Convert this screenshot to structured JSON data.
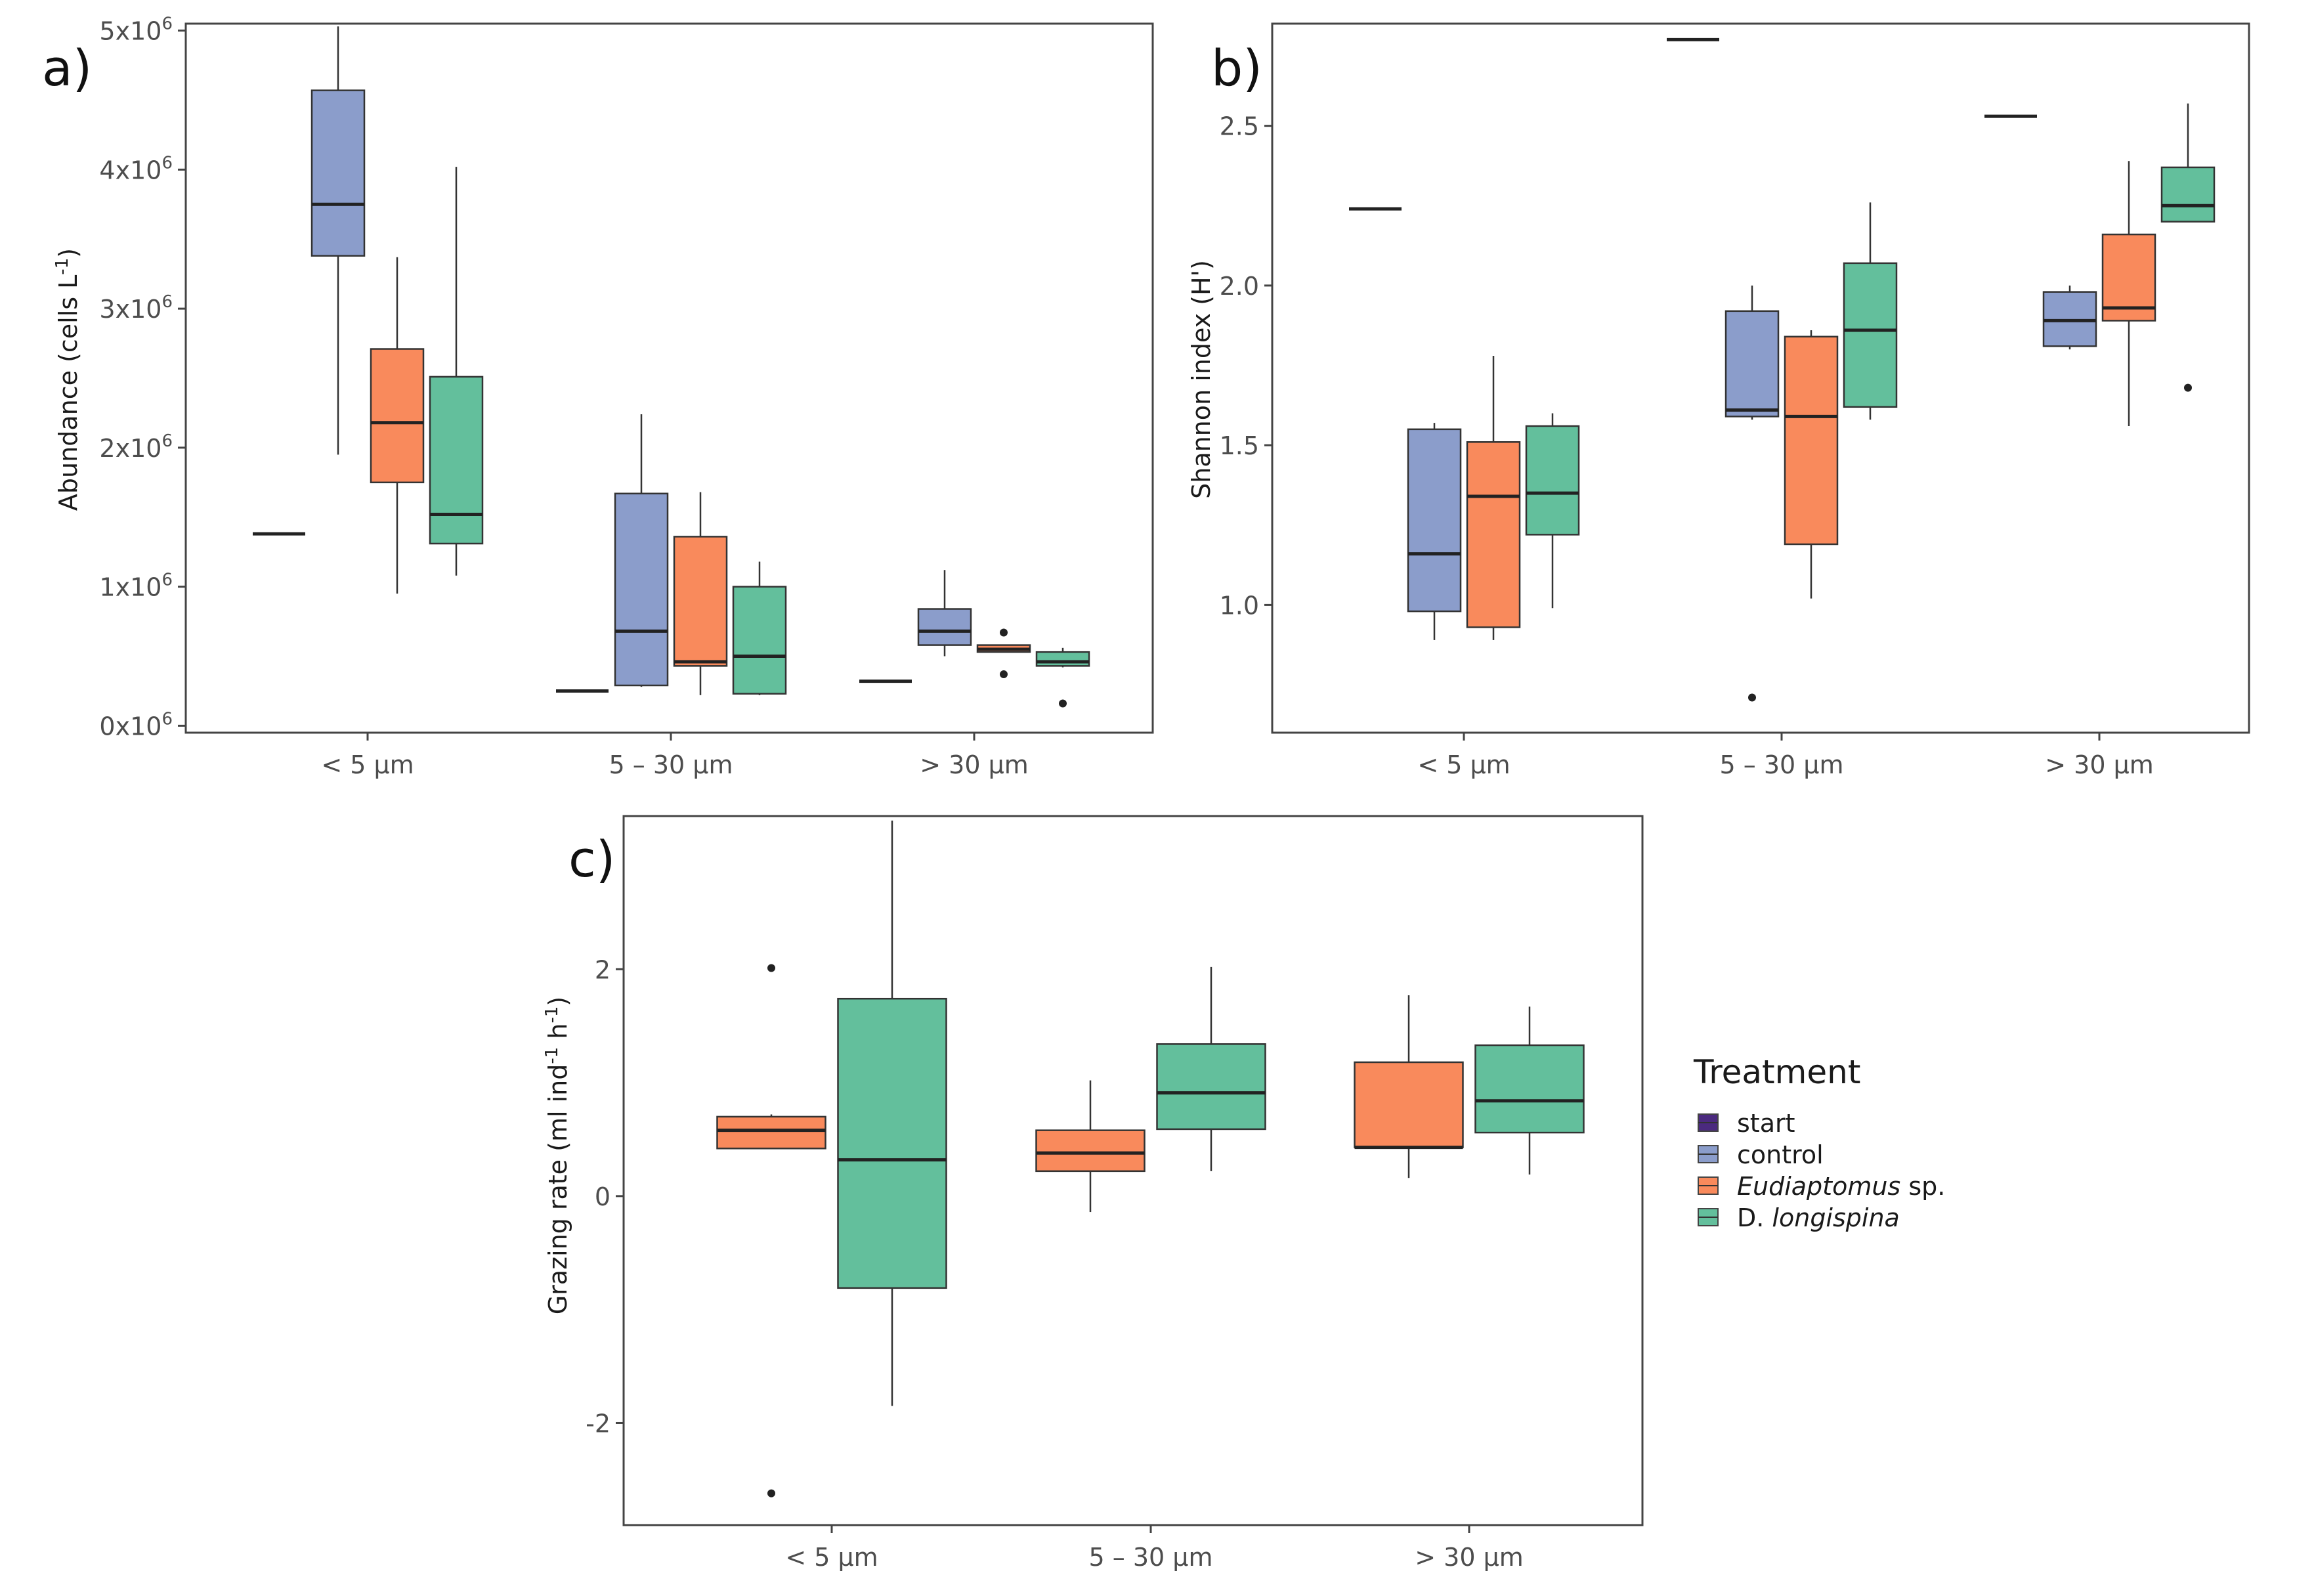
{
  "colors": {
    "start": "#4b2a7f",
    "control": "#8b9dcb",
    "eudiaptomus": "#f98a5c",
    "longispina": "#63bf9c",
    "frame": "#444444",
    "median": "#222222"
  },
  "legend": {
    "title": "Treatment",
    "items": [
      {
        "key": "start",
        "label": "start",
        "label_italic": "",
        "label_suffix": ""
      },
      {
        "key": "control",
        "label": "control",
        "label_italic": "",
        "label_suffix": ""
      },
      {
        "key": "eudiaptomus",
        "label": "",
        "label_italic": "Eudiaptomus",
        "label_suffix": " sp."
      },
      {
        "key": "longispina",
        "label": "D. ",
        "label_italic": "longispina",
        "label_suffix": ""
      }
    ]
  },
  "chart_data": [
    {
      "panel": "a)",
      "type": "boxplot",
      "title": "",
      "xlabel": "",
      "ylabel_main": "Abundance (cells L",
      "ylabel_sup": "-1",
      "ylabel_end": ")",
      "ylim": [
        -0.05,
        5.05
      ],
      "ticks": [
        {
          "value": 0,
          "base": "0x10",
          "sup": "6"
        },
        {
          "value": 1,
          "base": "1x10",
          "sup": "6"
        },
        {
          "value": 2,
          "base": "2x10",
          "sup": "6"
        },
        {
          "value": 3,
          "base": "3x10",
          "sup": "6"
        },
        {
          "value": 4,
          "base": "4x10",
          "sup": "6"
        },
        {
          "value": 5,
          "base": "5x10",
          "sup": "6"
        }
      ],
      "categories": [
        "< 5 µm",
        "5 – 30 µm",
        "> 30 µm"
      ],
      "treatments": [
        "start",
        "control",
        "eudiaptomus",
        "longispina"
      ],
      "boxes": [
        {
          "group": 0,
          "treatment": "start",
          "min": 1.38,
          "q1": 1.38,
          "median": 1.38,
          "q3": 1.38,
          "max": 1.38,
          "outliers": []
        },
        {
          "group": 0,
          "treatment": "control",
          "min": 1.95,
          "q1": 3.38,
          "median": 3.75,
          "q3": 4.57,
          "max": 5.03,
          "outliers": []
        },
        {
          "group": 0,
          "treatment": "eudiaptomus",
          "min": 0.95,
          "q1": 1.75,
          "median": 2.18,
          "q3": 2.71,
          "max": 3.37,
          "outliers": []
        },
        {
          "group": 0,
          "treatment": "longispina",
          "min": 1.08,
          "q1": 1.31,
          "median": 1.52,
          "q3": 2.51,
          "max": 4.02,
          "outliers": []
        },
        {
          "group": 1,
          "treatment": "start",
          "min": 0.25,
          "q1": 0.25,
          "median": 0.25,
          "q3": 0.25,
          "max": 0.25,
          "outliers": []
        },
        {
          "group": 1,
          "treatment": "control",
          "min": 0.28,
          "q1": 0.29,
          "median": 0.68,
          "q3": 1.67,
          "max": 2.24,
          "outliers": []
        },
        {
          "group": 1,
          "treatment": "eudiaptomus",
          "min": 0.22,
          "q1": 0.43,
          "median": 0.46,
          "q3": 1.36,
          "max": 1.68,
          "outliers": []
        },
        {
          "group": 1,
          "treatment": "longispina",
          "min": 0.22,
          "q1": 0.23,
          "median": 0.5,
          "q3": 1.0,
          "max": 1.18,
          "outliers": []
        },
        {
          "group": 2,
          "treatment": "start",
          "min": 0.32,
          "q1": 0.32,
          "median": 0.32,
          "q3": 0.32,
          "max": 0.32,
          "outliers": []
        },
        {
          "group": 2,
          "treatment": "control",
          "min": 0.5,
          "q1": 0.58,
          "median": 0.68,
          "q3": 0.84,
          "max": 1.12,
          "outliers": []
        },
        {
          "group": 2,
          "treatment": "eudiaptomus",
          "min": 0.53,
          "q1": 0.53,
          "median": 0.55,
          "q3": 0.58,
          "max": 0.58,
          "outliers": [
            0.67,
            0.37
          ]
        },
        {
          "group": 2,
          "treatment": "longispina",
          "min": 0.42,
          "q1": 0.43,
          "median": 0.46,
          "q3": 0.53,
          "max": 0.56,
          "outliers": [
            0.16
          ]
        }
      ]
    },
    {
      "panel": "b)",
      "type": "boxplot",
      "title": "",
      "xlabel": "",
      "ylabel_main": "Shannon index (H')",
      "ylabel_sup": "",
      "ylabel_end": "",
      "ylim": [
        0.6,
        2.82
      ],
      "ticks": [
        {
          "value": 1.0,
          "base": "1.0",
          "sup": ""
        },
        {
          "value": 1.5,
          "base": "1.5",
          "sup": ""
        },
        {
          "value": 2.0,
          "base": "2.0",
          "sup": ""
        },
        {
          "value": 2.5,
          "base": "2.5",
          "sup": ""
        }
      ],
      "categories": [
        "< 5 µm",
        "5 – 30 µm",
        "> 30 µm"
      ],
      "treatments": [
        "start",
        "control",
        "eudiaptomus",
        "longispina"
      ],
      "boxes": [
        {
          "group": 0,
          "treatment": "start",
          "min": 2.24,
          "q1": 2.24,
          "median": 2.24,
          "q3": 2.24,
          "max": 2.24,
          "outliers": []
        },
        {
          "group": 0,
          "treatment": "control",
          "min": 0.89,
          "q1": 0.98,
          "median": 1.16,
          "q3": 1.55,
          "max": 1.57,
          "outliers": []
        },
        {
          "group": 0,
          "treatment": "eudiaptomus",
          "min": 0.89,
          "q1": 0.93,
          "median": 1.34,
          "q3": 1.51,
          "max": 1.78,
          "outliers": []
        },
        {
          "group": 0,
          "treatment": "longispina",
          "min": 0.99,
          "q1": 1.22,
          "median": 1.35,
          "q3": 1.56,
          "max": 1.6,
          "outliers": []
        },
        {
          "group": 1,
          "treatment": "start",
          "min": 2.77,
          "q1": 2.77,
          "median": 2.77,
          "q3": 2.77,
          "max": 2.77,
          "outliers": []
        },
        {
          "group": 1,
          "treatment": "control",
          "min": 1.58,
          "q1": 1.59,
          "median": 1.61,
          "q3": 1.92,
          "max": 2.0,
          "outliers": [
            0.71
          ]
        },
        {
          "group": 1,
          "treatment": "eudiaptomus",
          "min": 1.02,
          "q1": 1.19,
          "median": 1.59,
          "q3": 1.84,
          "max": 1.86,
          "outliers": []
        },
        {
          "group": 1,
          "treatment": "longispina",
          "min": 1.58,
          "q1": 1.62,
          "median": 1.86,
          "q3": 2.07,
          "max": 2.26,
          "outliers": []
        },
        {
          "group": 2,
          "treatment": "start",
          "min": 2.53,
          "q1": 2.53,
          "median": 2.53,
          "q3": 2.53,
          "max": 2.53,
          "outliers": []
        },
        {
          "group": 2,
          "treatment": "control",
          "min": 1.8,
          "q1": 1.81,
          "median": 1.89,
          "q3": 1.98,
          "max": 2.0,
          "outliers": []
        },
        {
          "group": 2,
          "treatment": "eudiaptomus",
          "min": 1.56,
          "q1": 1.89,
          "median": 1.93,
          "q3": 2.16,
          "max": 2.39,
          "outliers": []
        },
        {
          "group": 2,
          "treatment": "longispina",
          "min": 2.2,
          "q1": 2.2,
          "median": 2.25,
          "q3": 2.37,
          "max": 2.57,
          "outliers": [
            1.68
          ]
        }
      ]
    },
    {
      "panel": "c)",
      "type": "boxplot",
      "title": "",
      "xlabel": "",
      "ylabel_main": "Grazing rate (ml ind",
      "ylabel_sup": "-1",
      "ylabel_mid": " h",
      "ylabel_sup2": "-1",
      "ylabel_end": ")",
      "ylim": [
        -2.9,
        3.35
      ],
      "ticks": [
        {
          "value": -2,
          "base": "-2",
          "sup": ""
        },
        {
          "value": 0,
          "base": "0",
          "sup": ""
        },
        {
          "value": 2,
          "base": "2",
          "sup": ""
        }
      ],
      "categories": [
        "< 5 µm",
        "5 – 30 µm",
        "> 30 µm"
      ],
      "treatments": [
        "eudiaptomus",
        "longispina"
      ],
      "boxes": [
        {
          "group": 0,
          "treatment": "eudiaptomus",
          "min": 0.42,
          "q1": 0.42,
          "median": 0.58,
          "q3": 0.7,
          "max": 0.72,
          "outliers": [
            2.01,
            -2.62
          ]
        },
        {
          "group": 0,
          "treatment": "longispina",
          "min": -1.85,
          "q1": -0.81,
          "median": 0.32,
          "q3": 1.74,
          "max": 3.31,
          "outliers": []
        },
        {
          "group": 1,
          "treatment": "eudiaptomus",
          "min": -0.14,
          "q1": 0.22,
          "median": 0.38,
          "q3": 0.58,
          "max": 1.02,
          "outliers": []
        },
        {
          "group": 1,
          "treatment": "longispina",
          "min": 0.22,
          "q1": 0.59,
          "median": 0.91,
          "q3": 1.34,
          "max": 2.02,
          "outliers": []
        },
        {
          "group": 2,
          "treatment": "eudiaptomus",
          "min": 0.16,
          "q1": 0.43,
          "median": 0.43,
          "q3": 1.18,
          "max": 1.77,
          "outliers": []
        },
        {
          "group": 2,
          "treatment": "longispina",
          "min": 0.19,
          "q1": 0.56,
          "median": 0.84,
          "q3": 1.33,
          "max": 1.67,
          "outliers": []
        }
      ]
    }
  ]
}
